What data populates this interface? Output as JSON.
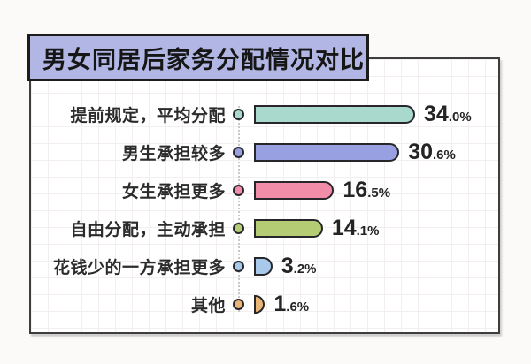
{
  "title": "男女同居后家务分配情况对比",
  "chart_data": {
    "type": "bar",
    "orientation": "horizontal",
    "title": "男女同居后家务分配情况对比",
    "categories": [
      "提前规定，平均分配",
      "男生承担较多",
      "女生承担更多",
      "自由分配，主动承担",
      "花钱少的一方承担更多",
      "其他"
    ],
    "values": [
      34.0,
      30.6,
      16.5,
      14.1,
      3.2,
      1.6
    ],
    "unit": "%",
    "value_labels": [
      "34.0%",
      "30.6%",
      "16.5%",
      "14.1%",
      "3.2%",
      "1.6%"
    ],
    "xlim": [
      0,
      34
    ],
    "grid": "faint graph-paper grid on panel",
    "legend_position": "none",
    "colors": [
      "#a9d9cc",
      "#99a0e2",
      "#f18ca9",
      "#b4cc73",
      "#a9c9ea",
      "#e9b678"
    ],
    "accent_colors": {
      "title_bg": "#b1b6e4",
      "bar_border": "#27272b",
      "panel_border": "#3d3d3d",
      "text": "#2b2b2b",
      "axis_dotted": "#c9c9c9"
    }
  }
}
